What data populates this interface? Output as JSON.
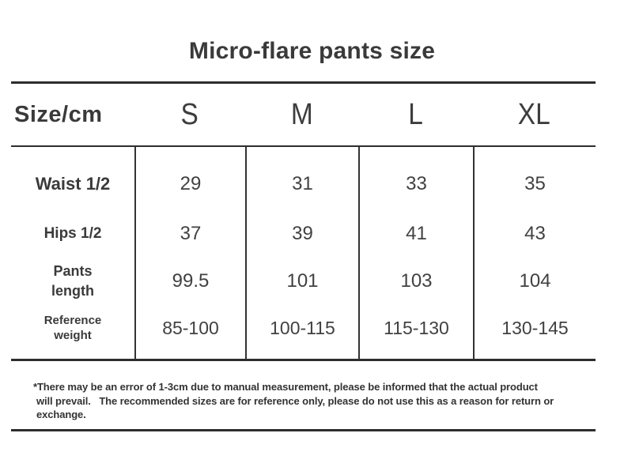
{
  "page": {
    "background": "#ffffff",
    "text_color": "#3b3b3b",
    "line_color": "#2d2d2d"
  },
  "title": "Micro-flare pants size",
  "table": {
    "header": {
      "label": "Size/cm",
      "sizes": [
        "S",
        "M",
        "L",
        "XL"
      ]
    },
    "rows": [
      {
        "label_lines": [
          "Waist 1/2"
        ],
        "values": [
          "29",
          "31",
          "33",
          "35"
        ]
      },
      {
        "label_lines": [
          "Hips 1/2"
        ],
        "values": [
          "37",
          "39",
          "41",
          "43"
        ]
      },
      {
        "label_lines": [
          "Pants",
          "length"
        ],
        "values": [
          "99.5",
          "101",
          "103",
          "104"
        ]
      },
      {
        "label_lines": [
          "Reference",
          "weight"
        ],
        "values": [
          "85-100",
          "100-115",
          "115-130",
          "130-145"
        ]
      }
    ]
  },
  "footnote": {
    "lines": [
      "*There may be an error of 1-3cm due to manual measurement, please be informed that the actual product",
      "will prevail.   The recommended sizes are for reference only, please do not use this as a reason for return or",
      "exchange."
    ]
  },
  "chart_data": {
    "type": "table",
    "title": "Micro-flare pants size",
    "unit": "cm",
    "columns": [
      "Size/cm",
      "S",
      "M",
      "L",
      "XL"
    ],
    "rows": [
      {
        "label": "Waist 1/2",
        "values": [
          29,
          31,
          33,
          35
        ]
      },
      {
        "label": "Hips 1/2",
        "values": [
          37,
          39,
          41,
          43
        ]
      },
      {
        "label": "Pants length",
        "values": [
          99.5,
          101,
          103,
          104
        ]
      },
      {
        "label": "Reference weight",
        "values": [
          "85-100",
          "100-115",
          "115-130",
          "130-145"
        ]
      }
    ],
    "footnote": "*There may be an error of 1-3cm due to manual measurement, please be informed that the actual product will prevail. The recommended sizes are for reference only, please do not use this as a reason for return or exchange."
  }
}
